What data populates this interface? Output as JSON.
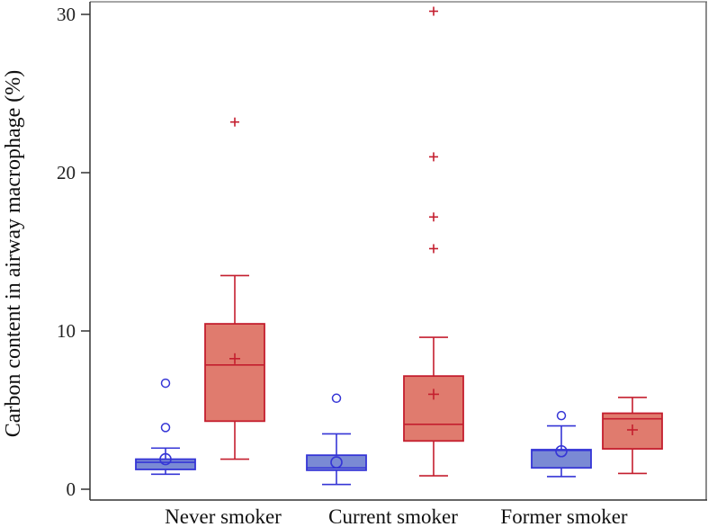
{
  "chart_data": {
    "type": "box",
    "title": "",
    "xlabel": "",
    "ylabel": "Carbon content in airway macrophage (%)",
    "ylim": [
      0,
      30
    ],
    "yticks": [
      0,
      10,
      20,
      30
    ],
    "grid": false,
    "legend": null,
    "categories": [
      "Never smoker",
      "Current smoker",
      "Former smoker"
    ],
    "series": [
      {
        "name": "blue",
        "color_fill": "#7a8ad4",
        "color_stroke": "#3535d6",
        "mean_marker": "circle",
        "outlier_marker": "circle",
        "boxes": [
          {
            "category": "Never smoker",
            "whisker_low": 0.95,
            "q1": 1.25,
            "median": 1.7,
            "q3": 1.9,
            "whisker_high": 2.6,
            "mean": 1.9,
            "outliers": [
              3.9,
              6.7
            ]
          },
          {
            "category": "Current smoker",
            "whisker_low": 0.3,
            "q1": 1.2,
            "median": 1.35,
            "q3": 2.15,
            "whisker_high": 3.5,
            "mean": 1.7,
            "outliers": [
              5.75
            ]
          },
          {
            "category": "Former smoker",
            "whisker_low": 0.8,
            "q1": 1.35,
            "median": 2.45,
            "q3": 2.5,
            "whisker_high": 4.0,
            "mean": 2.4,
            "outliers": [
              4.65
            ]
          }
        ]
      },
      {
        "name": "red",
        "color_fill": "#e07b6e",
        "color_stroke": "#c41e2e",
        "mean_marker": "plus",
        "outlier_marker": "plus",
        "boxes": [
          {
            "category": "Never smoker",
            "whisker_low": 1.9,
            "q1": 4.3,
            "median": 7.85,
            "q3": 10.45,
            "whisker_high": 13.5,
            "mean": 8.25,
            "outliers": [
              23.2
            ]
          },
          {
            "category": "Current smoker",
            "whisker_low": 0.85,
            "q1": 3.05,
            "median": 4.1,
            "q3": 7.15,
            "whisker_high": 9.6,
            "mean": 6.0,
            "outliers": [
              15.2,
              17.2,
              21.0,
              30.2
            ]
          },
          {
            "category": "Former smoker",
            "whisker_low": 1.0,
            "q1": 2.55,
            "median": 4.45,
            "q3": 4.8,
            "whisker_high": 5.8,
            "mean": 3.75,
            "outliers": []
          }
        ]
      }
    ]
  }
}
